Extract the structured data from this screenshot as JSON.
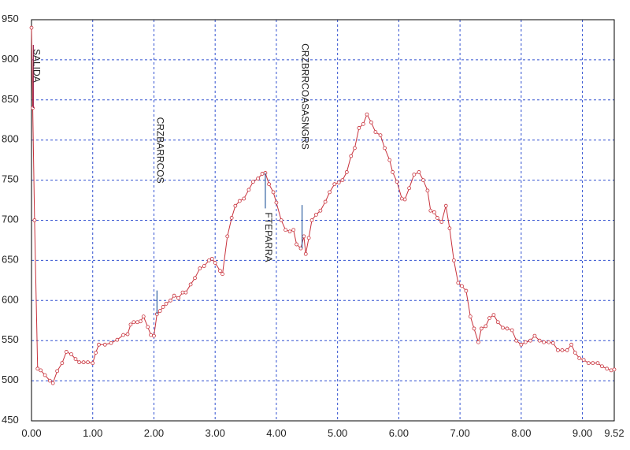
{
  "chart_data": {
    "type": "line",
    "x": [
      0.0,
      0.02,
      0.05,
      0.1,
      0.15,
      0.22,
      0.3,
      0.35,
      0.42,
      0.5,
      0.57,
      0.65,
      0.72,
      0.78,
      0.85,
      0.92,
      1.0,
      1.05,
      1.1,
      1.2,
      1.3,
      1.4,
      1.5,
      1.57,
      1.62,
      1.67,
      1.73,
      1.78,
      1.83,
      1.9,
      1.95,
      2.0,
      2.05,
      2.1,
      2.15,
      2.2,
      2.27,
      2.33,
      2.4,
      2.47,
      2.52,
      2.6,
      2.67,
      2.75,
      2.82,
      2.9,
      2.95,
      3.0,
      3.08,
      3.12,
      3.2,
      3.27,
      3.33,
      3.4,
      3.47,
      3.55,
      3.62,
      3.7,
      3.77,
      3.82,
      3.88,
      3.95,
      4.0,
      4.08,
      4.15,
      4.22,
      4.28,
      4.33,
      4.4,
      4.45,
      4.48,
      4.53,
      4.58,
      4.65,
      4.72,
      4.8,
      4.87,
      4.95,
      5.02,
      5.08,
      5.15,
      5.22,
      5.28,
      5.35,
      5.42,
      5.48,
      5.55,
      5.62,
      5.7,
      5.77,
      5.85,
      5.9,
      5.97,
      6.05,
      6.1,
      6.17,
      6.25,
      6.33,
      6.4,
      6.47,
      6.52,
      6.58,
      6.63,
      6.7,
      6.77,
      6.83,
      6.9,
      6.97,
      7.03,
      7.1,
      7.17,
      7.23,
      7.3,
      7.35,
      7.42,
      7.48,
      7.55,
      7.62,
      7.7,
      7.77,
      7.85,
      7.92,
      8.0,
      8.07,
      8.15,
      8.22,
      8.3,
      8.37,
      8.45,
      8.52,
      8.6,
      8.67,
      8.75,
      8.82,
      8.88,
      8.95,
      9.02,
      9.1,
      9.17,
      9.25,
      9.32,
      9.4,
      9.47,
      9.52
    ],
    "series": [
      {
        "color": "#c8323c",
        "values": [
          940,
          840,
          700,
          515,
          513,
          507,
          500,
          497,
          512,
          522,
          536,
          533,
          527,
          523,
          523,
          523,
          522,
          535,
          545,
          545,
          547,
          551,
          557,
          558,
          570,
          573,
          573,
          574,
          580,
          567,
          557,
          556,
          583,
          587,
          592,
          596,
          600,
          606,
          603,
          610,
          610,
          620,
          628,
          640,
          643,
          650,
          652,
          647,
          637,
          633,
          680,
          703,
          718,
          724,
          727,
          738,
          748,
          752,
          758,
          759,
          745,
          735,
          722,
          700,
          688,
          686,
          688,
          670,
          665,
          680,
          658,
          678,
          700,
          707,
          712,
          723,
          735,
          745,
          747,
          750,
          760,
          780,
          790,
          815,
          820,
          832,
          822,
          810,
          806,
          790,
          775,
          760,
          748,
          727,
          726,
          740,
          757,
          760,
          750,
          737,
          712,
          710,
          703,
          698,
          718,
          690,
          650,
          622,
          618,
          612,
          580,
          565,
          548,
          565,
          568,
          578,
          582,
          573,
          566,
          565,
          563,
          550,
          545,
          548,
          550,
          556,
          550,
          548,
          548,
          547,
          538,
          538,
          538,
          545,
          535,
          528,
          526,
          522,
          522,
          522,
          518,
          515,
          513,
          514
        ]
      }
    ],
    "xlim": [
      0,
      9.52
    ],
    "ylim": [
      450,
      950
    ],
    "xticks": [
      {
        "value": 0,
        "label": "0.00"
      },
      {
        "value": 1,
        "label": "1.00"
      },
      {
        "value": 2,
        "label": "2.00"
      },
      {
        "value": 3,
        "label": "3.00"
      },
      {
        "value": 4,
        "label": "4.00"
      },
      {
        "value": 5,
        "label": "5.00"
      },
      {
        "value": 6,
        "label": "6.00"
      },
      {
        "value": 7,
        "label": "7.00"
      },
      {
        "value": 8,
        "label": "8.00"
      },
      {
        "value": 9,
        "label": "9.00"
      },
      {
        "value": 9.52,
        "label": "9.52"
      }
    ],
    "yticks": [
      450,
      500,
      550,
      600,
      650,
      700,
      750,
      800,
      850,
      900,
      950
    ],
    "grid": true,
    "annotations": [
      {
        "text": "SALIDA",
        "x": 0.03,
        "y": 840
      },
      {
        "text": "CRZBARRCOS",
        "x": 2.05,
        "y": 583
      },
      {
        "text": "FTEPARRA",
        "x": 3.82,
        "y": 759
      },
      {
        "text": "CRZBRRCOASASNGRS",
        "x": 4.42,
        "y": 665
      }
    ]
  }
}
